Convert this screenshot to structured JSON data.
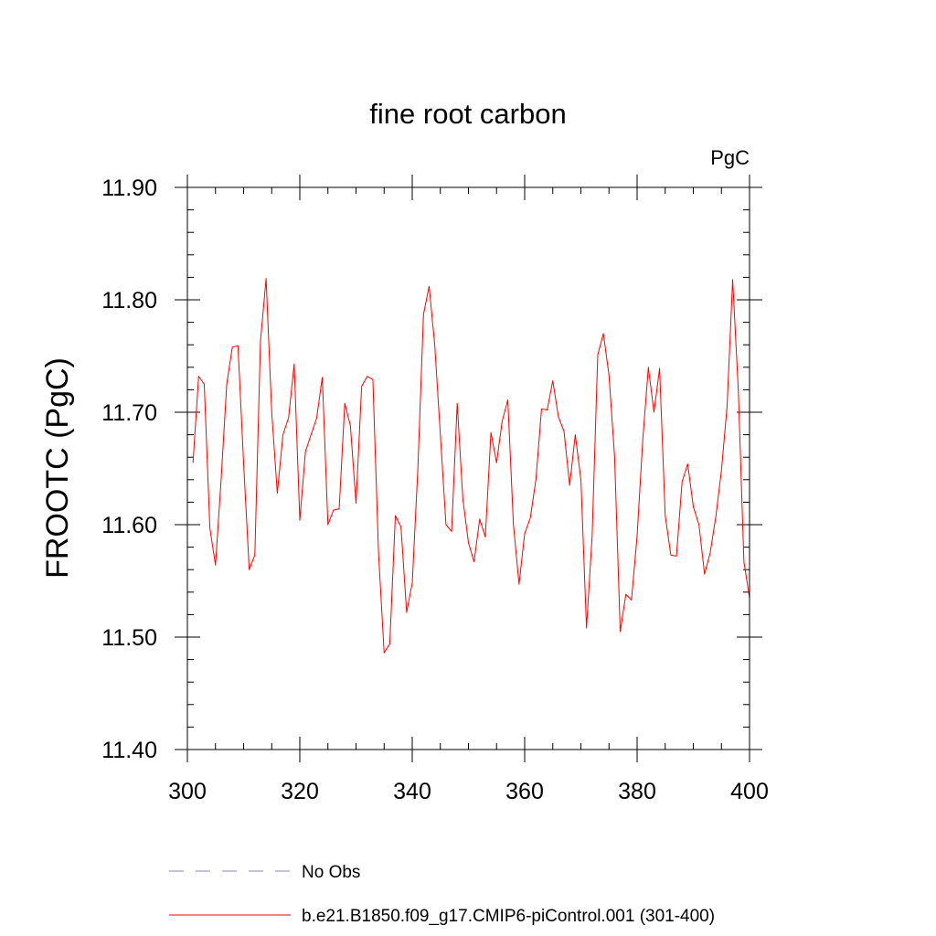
{
  "chart_data": {
    "type": "line",
    "title": "fine root carbon",
    "units_label": "PgC",
    "xlabel": "",
    "ylabel": "FROOTC  (PgC)",
    "xlim": [
      300,
      400
    ],
    "ylim": [
      11.4,
      11.9
    ],
    "x_ticks": [
      300,
      320,
      340,
      360,
      380,
      400
    ],
    "x_tick_labels": [
      "300",
      "320",
      "340",
      "360",
      "380",
      "400"
    ],
    "y_ticks": [
      11.4,
      11.5,
      11.6,
      11.7,
      11.8,
      11.9
    ],
    "y_tick_labels": [
      "11.40",
      "11.50",
      "11.60",
      "11.70",
      "11.80",
      "11.90"
    ],
    "grid": false,
    "legend_position": "bottom",
    "series": [
      {
        "name": "No Obs",
        "color": "#8a7fc7",
        "line_style": "dashed",
        "values": []
      },
      {
        "name": "b.e21.B1850.f09_g17.CMIP6-piControl.001 (301-400)",
        "color": "#ff0000",
        "line_style": "solid",
        "x": [
          301,
          302,
          303,
          304,
          305,
          306,
          307,
          308,
          309,
          310,
          311,
          312,
          313,
          314,
          315,
          316,
          317,
          318,
          319,
          320,
          321,
          322,
          323,
          324,
          325,
          326,
          327,
          328,
          329,
          330,
          331,
          332,
          333,
          334,
          335,
          336,
          337,
          338,
          339,
          340,
          341,
          342,
          343,
          344,
          345,
          346,
          347,
          348,
          349,
          350,
          351,
          352,
          353,
          354,
          355,
          356,
          357,
          358,
          359,
          360,
          361,
          362,
          363,
          364,
          365,
          366,
          367,
          368,
          369,
          370,
          371,
          372,
          373,
          374,
          375,
          376,
          377,
          378,
          379,
          380,
          381,
          382,
          383,
          384,
          385,
          386,
          387,
          388,
          389,
          390,
          391,
          392,
          393,
          394,
          395,
          396,
          397,
          398,
          399,
          400
        ],
        "values": [
          11.655,
          11.732,
          11.725,
          11.597,
          11.564,
          11.64,
          11.725,
          11.758,
          11.759,
          11.655,
          11.56,
          11.573,
          11.763,
          11.819,
          11.7,
          11.628,
          11.68,
          11.695,
          11.743,
          11.604,
          11.665,
          11.68,
          11.695,
          11.731,
          11.6,
          11.613,
          11.614,
          11.708,
          11.688,
          11.619,
          11.723,
          11.732,
          11.729,
          11.575,
          11.486,
          11.494,
          11.608,
          11.598,
          11.522,
          11.548,
          11.65,
          11.787,
          11.812,
          11.76,
          11.68,
          11.6,
          11.594,
          11.708,
          11.623,
          11.584,
          11.567,
          11.605,
          11.589,
          11.682,
          11.655,
          11.692,
          11.711,
          11.6,
          11.547,
          11.592,
          11.606,
          11.64,
          11.703,
          11.702,
          11.728,
          11.696,
          11.683,
          11.635,
          11.68,
          11.64,
          11.508,
          11.59,
          11.751,
          11.77,
          11.733,
          11.66,
          11.505,
          11.538,
          11.533,
          11.59,
          11.675,
          11.74,
          11.7,
          11.739,
          11.608,
          11.573,
          11.572,
          11.638,
          11.654,
          11.616,
          11.6,
          11.556,
          11.575,
          11.607,
          11.648,
          11.705,
          11.818,
          11.72,
          11.567,
          11.535
        ]
      }
    ]
  }
}
